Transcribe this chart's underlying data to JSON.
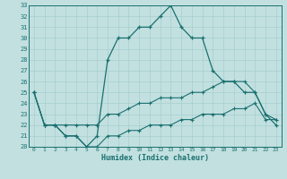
{
  "xlabel": "Humidex (Indice chaleur)",
  "xlim": [
    -0.5,
    23.5
  ],
  "ylim": [
    20,
    33
  ],
  "yticks": [
    20,
    21,
    22,
    23,
    24,
    25,
    26,
    27,
    28,
    29,
    30,
    31,
    32,
    33
  ],
  "xticks": [
    0,
    1,
    2,
    3,
    4,
    5,
    6,
    7,
    8,
    9,
    10,
    11,
    12,
    13,
    14,
    15,
    16,
    17,
    18,
    19,
    20,
    21,
    22,
    23
  ],
  "bg_color": "#c2e0e0",
  "grid_color": "#a8cece",
  "line_color": "#1a7070",
  "main_y": [
    25,
    22,
    22,
    21,
    21,
    20,
    21,
    28,
    30,
    30,
    31,
    31,
    32,
    33,
    31,
    30,
    30,
    27,
    26,
    26,
    25,
    25,
    23,
    22
  ],
  "upper_y": [
    25,
    22,
    22,
    22,
    22,
    22,
    22,
    23,
    23,
    23.5,
    24,
    24,
    24.5,
    24.5,
    24.5,
    25,
    25,
    25.5,
    26,
    26,
    26,
    25,
    23,
    22.5
  ],
  "lower_y": [
    25,
    22,
    22,
    21,
    21,
    20,
    20,
    21,
    21,
    21.5,
    21.5,
    22,
    22,
    22,
    22.5,
    22.5,
    23,
    23,
    23,
    23.5,
    23.5,
    24,
    22.5,
    22.5
  ]
}
